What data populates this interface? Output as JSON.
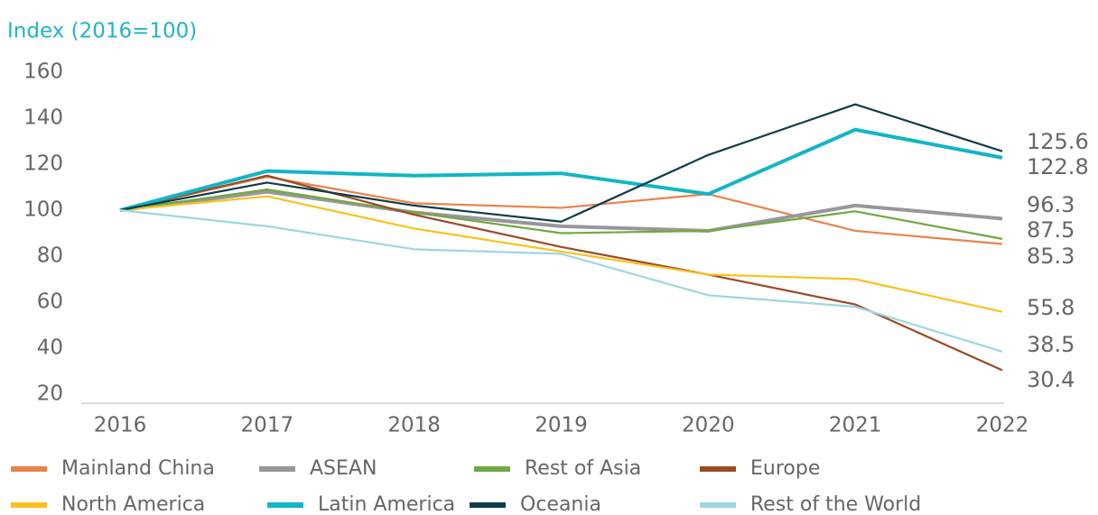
{
  "chart_data": {
    "type": "line",
    "title": "Index (2016=100)",
    "categories": [
      "2016",
      "2017",
      "2018",
      "2019",
      "2020",
      "2021",
      "2022"
    ],
    "ylim": [
      20,
      160
    ],
    "yticks": [
      20,
      40,
      60,
      80,
      100,
      120,
      140,
      160
    ],
    "grid": false,
    "series": [
      {
        "name": "Mainland China",
        "color": "#e8834a",
        "values": [
          100,
          114.5,
          103,
          101,
          107,
          91,
          85.3
        ]
      },
      {
        "name": "ASEAN",
        "color": "#97979b",
        "values": [
          100,
          108,
          99,
          93,
          91,
          102,
          96.3
        ]
      },
      {
        "name": "Rest of Asia",
        "color": "#72a843",
        "values": [
          100,
          109,
          99,
          90,
          91,
          99.5,
          87.5
        ]
      },
      {
        "name": "Europe",
        "color": "#9a4a26",
        "values": [
          100,
          115,
          98,
          84,
          72,
          59,
          30.4
        ]
      },
      {
        "name": "North America",
        "color": "#f9c21b",
        "values": [
          100,
          106,
          92,
          82,
          72,
          70,
          55.8
        ]
      },
      {
        "name": "Latin America",
        "color": "#12b5c6",
        "values": [
          100,
          117,
          115,
          116,
          107,
          135,
          122.8
        ]
      },
      {
        "name": "Oceania",
        "color": "#0f3d48",
        "values": [
          100,
          112,
          102,
          95,
          124,
          146,
          125.6
        ]
      },
      {
        "name": "Rest of the World",
        "color": "#9ed6df",
        "values": [
          100,
          93,
          83,
          81,
          63,
          58,
          38.5
        ]
      }
    ]
  }
}
